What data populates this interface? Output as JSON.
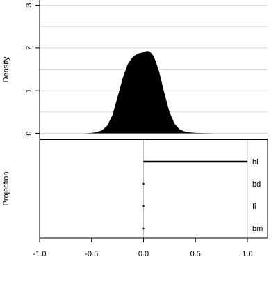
{
  "chart_data": [
    {
      "type": "area",
      "title": "",
      "xlabel": "",
      "ylabel": "Density",
      "ylim": [
        0,
        3
      ],
      "y_ticks": [
        "0",
        "1",
        "2",
        "3"
      ],
      "grid": true,
      "series": [
        {
          "x": [
            -0.57,
            -0.5,
            -0.45,
            -0.4,
            -0.35,
            -0.3,
            -0.25,
            -0.2,
            -0.15,
            -0.1,
            -0.05,
            0.0,
            0.03,
            0.06,
            0.1,
            0.15,
            0.2,
            0.25,
            0.3,
            0.35,
            0.4,
            0.45,
            0.5,
            0.6,
            0.7
          ],
          "y": [
            0.0,
            0.01,
            0.03,
            0.07,
            0.18,
            0.42,
            0.85,
            1.3,
            1.63,
            1.8,
            1.87,
            1.9,
            1.93,
            1.92,
            1.8,
            1.45,
            0.95,
            0.5,
            0.22,
            0.09,
            0.04,
            0.02,
            0.01,
            0.005,
            0.0
          ]
        }
      ]
    },
    {
      "type": "bar",
      "title": "",
      "ylabel": "Projection",
      "xlim": [
        -1.0,
        1.2
      ],
      "x_ticks": [
        "-1.0",
        "-0.5",
        "0.0",
        "0.5",
        "1.0"
      ],
      "categories": [
        "bl",
        "bd",
        "fl",
        "bm"
      ],
      "values": [
        1.0,
        0.0,
        0.0,
        0.0
      ]
    }
  ]
}
